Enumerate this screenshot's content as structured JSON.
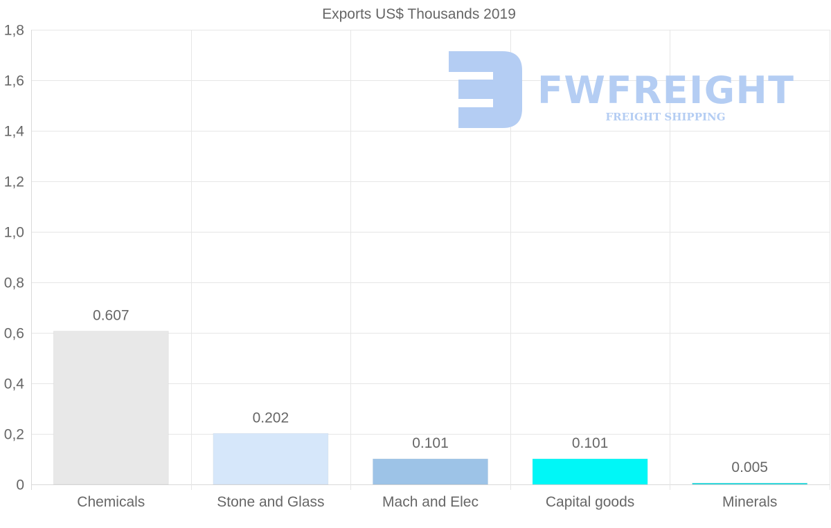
{
  "watermark": {
    "brand": "FWFREIGHT",
    "tagline": "FREIGHT SHIPPING",
    "color": "#b4cdf3"
  },
  "chart_data": {
    "type": "bar",
    "title": "Exports US$ Thousands 2019",
    "categories": [
      "Chemicals",
      "Stone and Glass",
      "Mach and Elec",
      "Capital goods",
      "Minerals"
    ],
    "values": [
      0.607,
      0.202,
      0.101,
      0.101,
      0.005
    ],
    "data_labels": [
      "0.607",
      "0.202",
      "0.101",
      "0.101",
      "0.005"
    ],
    "colors": [
      "#e8e8e8",
      "#d6e7fa",
      "#9dc3e7",
      "#00f7f7",
      "#33dde0"
    ],
    "ylim": [
      0,
      1.8
    ],
    "yticks": [
      0,
      0.2,
      0.4,
      0.6,
      0.8,
      1.0,
      1.2,
      1.4,
      1.6,
      1.8
    ],
    "ytick_labels": [
      "0",
      "0,2",
      "0,4",
      "0,6",
      "0,8",
      "1,0",
      "1,2",
      "1,4",
      "1,6",
      "1,8"
    ],
    "xlabel": "",
    "ylabel": "",
    "grid": true,
    "legend": "none"
  }
}
